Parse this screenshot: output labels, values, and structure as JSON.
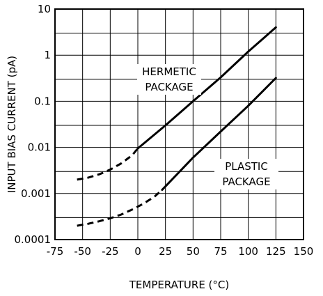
{
  "chart_data": {
    "type": "line",
    "title": "",
    "xlabel": "TEMPERATURE (°C)",
    "ylabel": "INPUT BIAS CURRENT (pA)",
    "xlim": [
      -75,
      150
    ],
    "ylim": [
      0.0001,
      10
    ],
    "y_scale": "log",
    "grid": true,
    "x_ticks": [
      -75,
      -50,
      -25,
      0,
      25,
      50,
      75,
      100,
      125,
      150
    ],
    "x_tick_labels": [
      "-75",
      "-50",
      "-25",
      "0",
      "25",
      "50",
      "75",
      "100",
      "125",
      "150"
    ],
    "y_ticks": [
      0.0001,
      0.001,
      0.01,
      0.1,
      1,
      10
    ],
    "y_tick_labels": [
      "0.0001",
      "0.001",
      "0.01",
      "0.1",
      "1",
      "10"
    ],
    "x_grid_lines": [
      -75,
      -50,
      -25,
      0,
      25,
      50,
      75,
      100,
      125,
      150
    ],
    "y_grid_lines": [
      0.0001,
      0.0003,
      0.001,
      0.003,
      0.01,
      0.03,
      0.1,
      0.3,
      1,
      3,
      10
    ],
    "series": [
      {
        "name": "HERMETIC PACKAGE",
        "annotation_lines": [
          "HERMETIC",
          "PACKAGE"
        ],
        "dashed": {
          "x": [
            -55,
            -45,
            -35,
            -25,
            -15,
            -5,
            0
          ],
          "y": [
            0.002,
            0.0022,
            0.0026,
            0.0033,
            0.0045,
            0.0068,
            0.0095
          ]
        },
        "solid": {
          "x": [
            0,
            25,
            50,
            75,
            100,
            125
          ],
          "y": [
            0.0095,
            0.03,
            0.1,
            0.33,
            1.2,
            4
          ]
        }
      },
      {
        "name": "PLASTIC PACKAGE",
        "annotation_lines": [
          "PLASTIC",
          "PACKAGE"
        ],
        "dashed": {
          "x": [
            -55,
            -45,
            -35,
            -25,
            -15,
            -5,
            5,
            15,
            22
          ],
          "y": [
            0.0002,
            0.00022,
            0.00025,
            0.00029,
            0.00035,
            0.00045,
            0.0006,
            0.00085,
            0.0012
          ]
        },
        "solid": {
          "x": [
            22,
            50,
            75,
            100,
            125
          ],
          "y": [
            0.0012,
            0.006,
            0.022,
            0.08,
            0.32
          ]
        }
      }
    ]
  }
}
